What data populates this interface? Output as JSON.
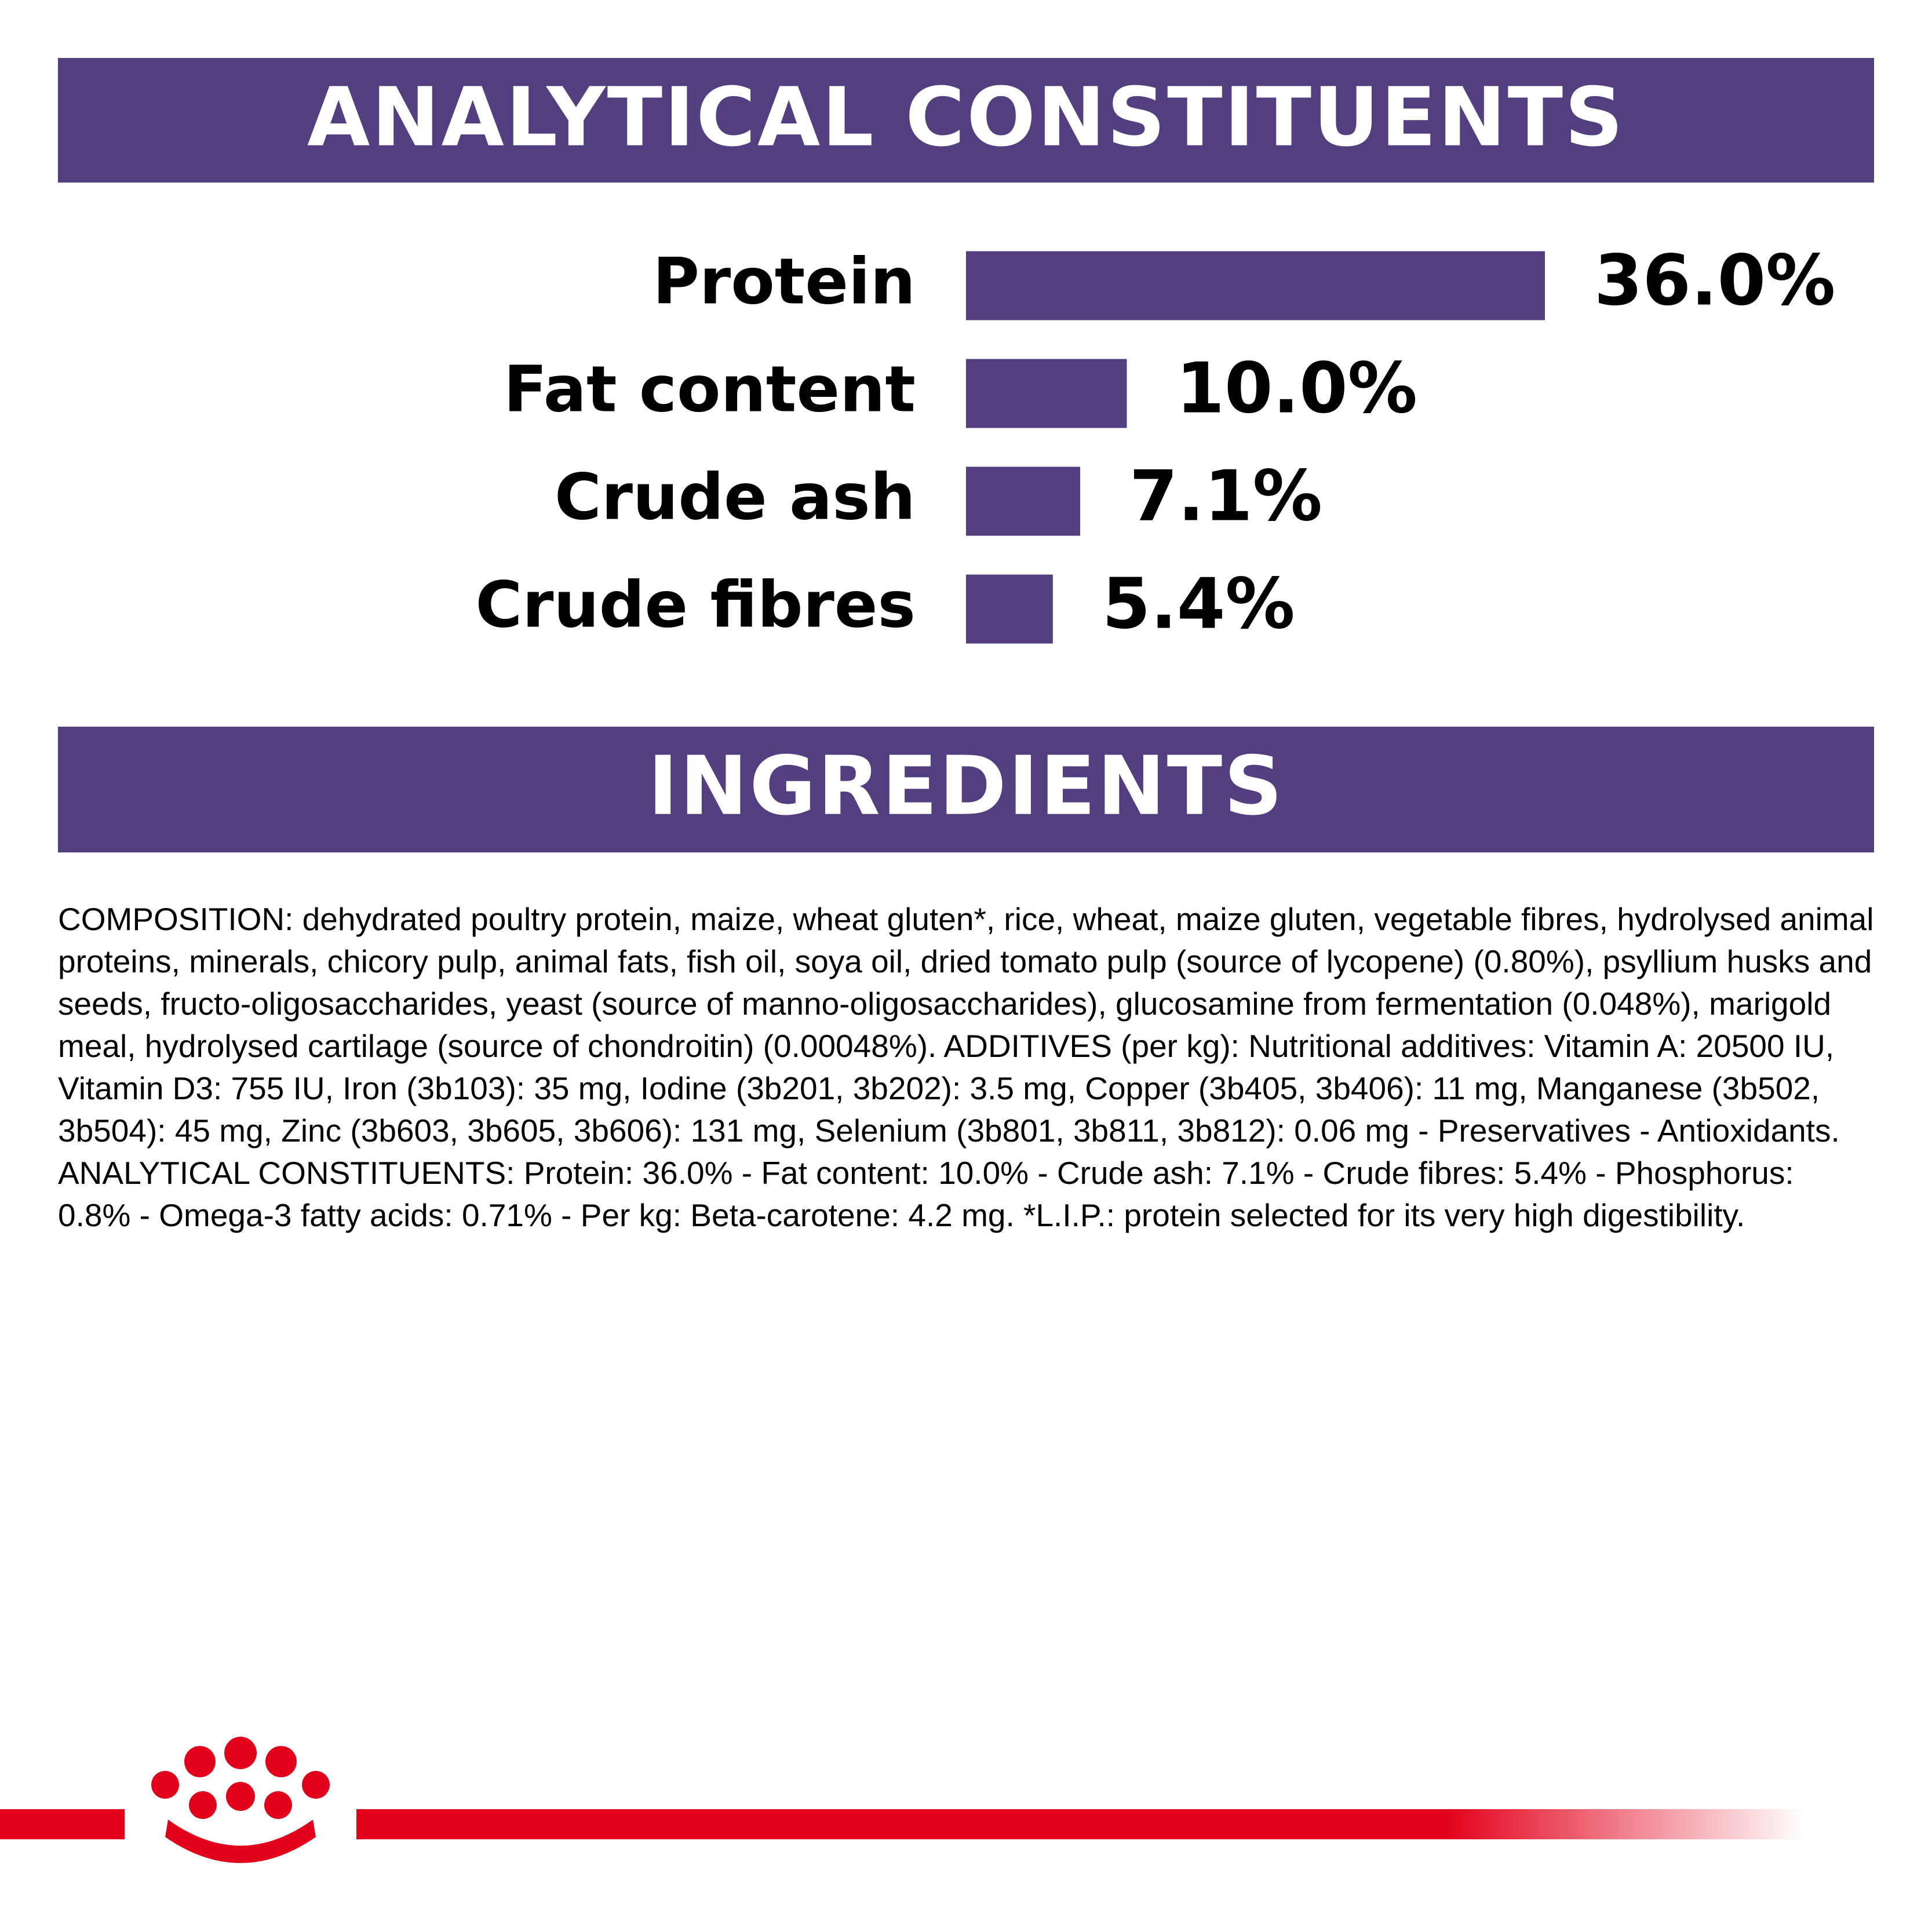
{
  "chart_data": {
    "type": "hbar",
    "title": "ANALYTICAL CONSTITUENTS",
    "categories": [
      "Protein",
      "Fat content",
      "Crude ash",
      "Crude fibres"
    ],
    "values": [
      36.0,
      10.0,
      7.1,
      5.4
    ],
    "value_labels": [
      "36.0%",
      "10.0%",
      "7.1%",
      "5.4%"
    ],
    "color": "#533f80"
  },
  "ingredients": {
    "title": "INGREDIENTS",
    "text": "COMPOSITION: dehydrated poultry protein, maize, wheat gluten*, rice, wheat, maize gluten, vegetable fibres, hydrolysed animal proteins, minerals, chicory pulp, animal fats, fish oil, soya oil, dried tomato pulp (source of lycopene) (0.80%), psyllium husks and seeds, fructo-oligosaccharides, yeast (source of manno-oligosaccharides), glucosamine from fermentation (0.048%), marigold meal, hydrolysed cartilage (source of chondroitin) (0.00048%). ADDITIVES (per kg): Nutritional additives: Vitamin A: 20500 IU, Vitamin D3: 755 IU, Iron (3b103): 35 mg, Iodine (3b201, 3b202): 3.5 mg, Copper (3b405, 3b406): 11 mg, Manganese (3b502, 3b504): 45 mg, Zinc (3b603, 3b605, 3b606): 131 mg, Selenium (3b801, 3b811, 3b812): 0.06 mg - Preservatives - Antioxidants. ANALYTICAL CONSTITUENTS: Protein: 36.0% - Fat content: 10.0% - Crude ash: 7.1% - Crude fibres: 5.4% - Phosphorus: 0.8% - Omega-3 fatty acids: 0.71% - Per kg: Beta-carotene: 4.2 mg. *L.I.P.: protein selected for its very high digestibility."
  }
}
